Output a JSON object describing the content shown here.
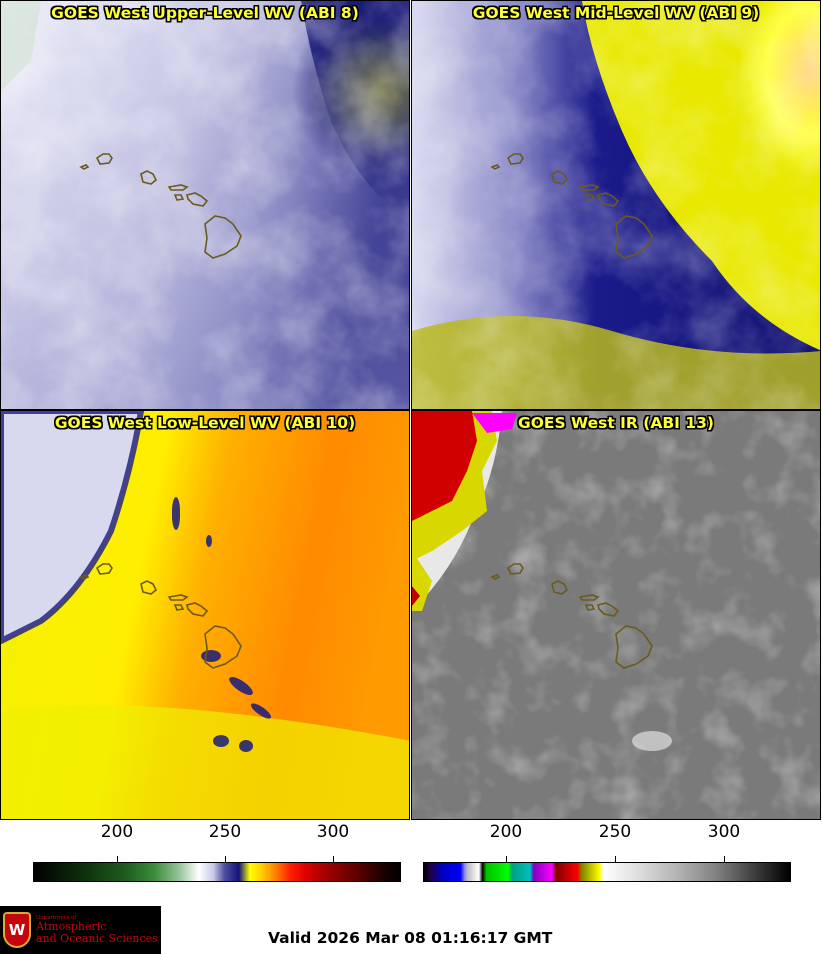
{
  "panels": [
    {
      "title": "GOES West Upper-Level WV (ABI 8)"
    },
    {
      "title": "GOES West Mid-Level WV (ABI 9)"
    },
    {
      "title": "GOES West Low-Level WV (ABI 10)"
    },
    {
      "title": "GOES West IR (ABI 13)"
    }
  ],
  "colorbars": {
    "left": {
      "ticks": [
        "200",
        "250",
        "300"
      ],
      "colormap": "wv-enhanced"
    },
    "right": {
      "ticks": [
        "200",
        "250",
        "300"
      ],
      "colormap": "ir-enhanced"
    }
  },
  "logo": {
    "crest": "W",
    "dept_line": "Department of",
    "name_line1": "Atmospheric",
    "name_line2": "and Oceanic Sciences",
    "crest_color": "#c5050c"
  },
  "valid_time": "Valid 2026 Mar 08 01:16:17 GMT",
  "colors": {
    "title": "#ffff33",
    "coast_outline": "#6b5a1e"
  }
}
